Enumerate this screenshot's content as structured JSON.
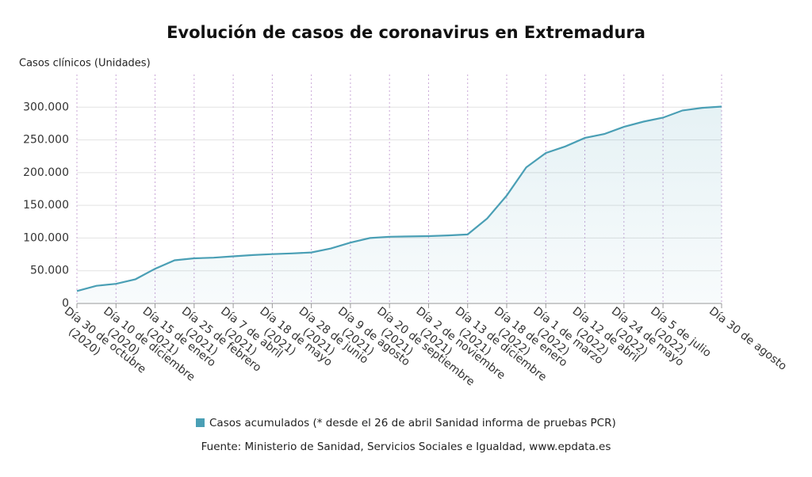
{
  "chart_data": {
    "type": "line",
    "title": "Evolución de casos de coronavirus en Extremadura",
    "y_axis_label": "Casos clínicos (Unidades)",
    "source": "Fuente: Ministerio de Sanidad, Servicios Sociales e Igualdad, www.epdata.es",
    "categories": [
      "Día 30 de octubre\n(2020)",
      null,
      "Día 10 de diciembre\n(2020)",
      null,
      "Día 15 de enero\n(2021)",
      null,
      "Día 25 de febrero\n(2021)",
      null,
      "Día 7 de abril\n(2021)",
      null,
      "Día 18 de mayo\n(2021)",
      null,
      "Día 28 de junio\n(2021)",
      null,
      "Día 9 de agosto\n(2021)",
      null,
      "Día 20 de septiembre\n(2021)",
      null,
      "Día 2 de noviembre\n(2021)",
      null,
      "Día 13 de diciembre\n(2021)",
      null,
      "Día 18 de enero\n(2022)",
      null,
      "Día 1 de marzo\n(2022)",
      null,
      "Día 12 de abril\n(2022)",
      null,
      "Día 24 de mayo\n(2022)",
      null,
      "Día 5 de julio\n(2022)",
      null,
      null,
      "Día 30 de agosto"
    ],
    "series": [
      {
        "name": "Casos acumulados (* desde el 26 de abril Sanidad informa de pruebas PCR)",
        "color": "#4a9fb5",
        "values": [
          19000,
          27000,
          30000,
          37000,
          53000,
          66000,
          69000,
          70000,
          72000,
          74000,
          75500,
          76500,
          78000,
          84000,
          93000,
          100000,
          102000,
          102500,
          103000,
          104000,
          105500,
          130000,
          165000,
          208000,
          230000,
          240000,
          253000,
          259000,
          270000,
          278000,
          284000,
          295000,
          299000,
          301000
        ]
      }
    ],
    "ylim": [
      0,
      350000
    ],
    "yticks": [
      0,
      {
        "value": 50000,
        "label": "50.000"
      },
      {
        "value": 100000,
        "label": "100.000"
      },
      {
        "value": 150000,
        "label": "150.000"
      },
      {
        "value": 200000,
        "label": "200.000"
      },
      {
        "value": 250000,
        "label": "250.000"
      },
      {
        "value": 300000,
        "label": "300.000"
      }
    ],
    "grid": true
  }
}
